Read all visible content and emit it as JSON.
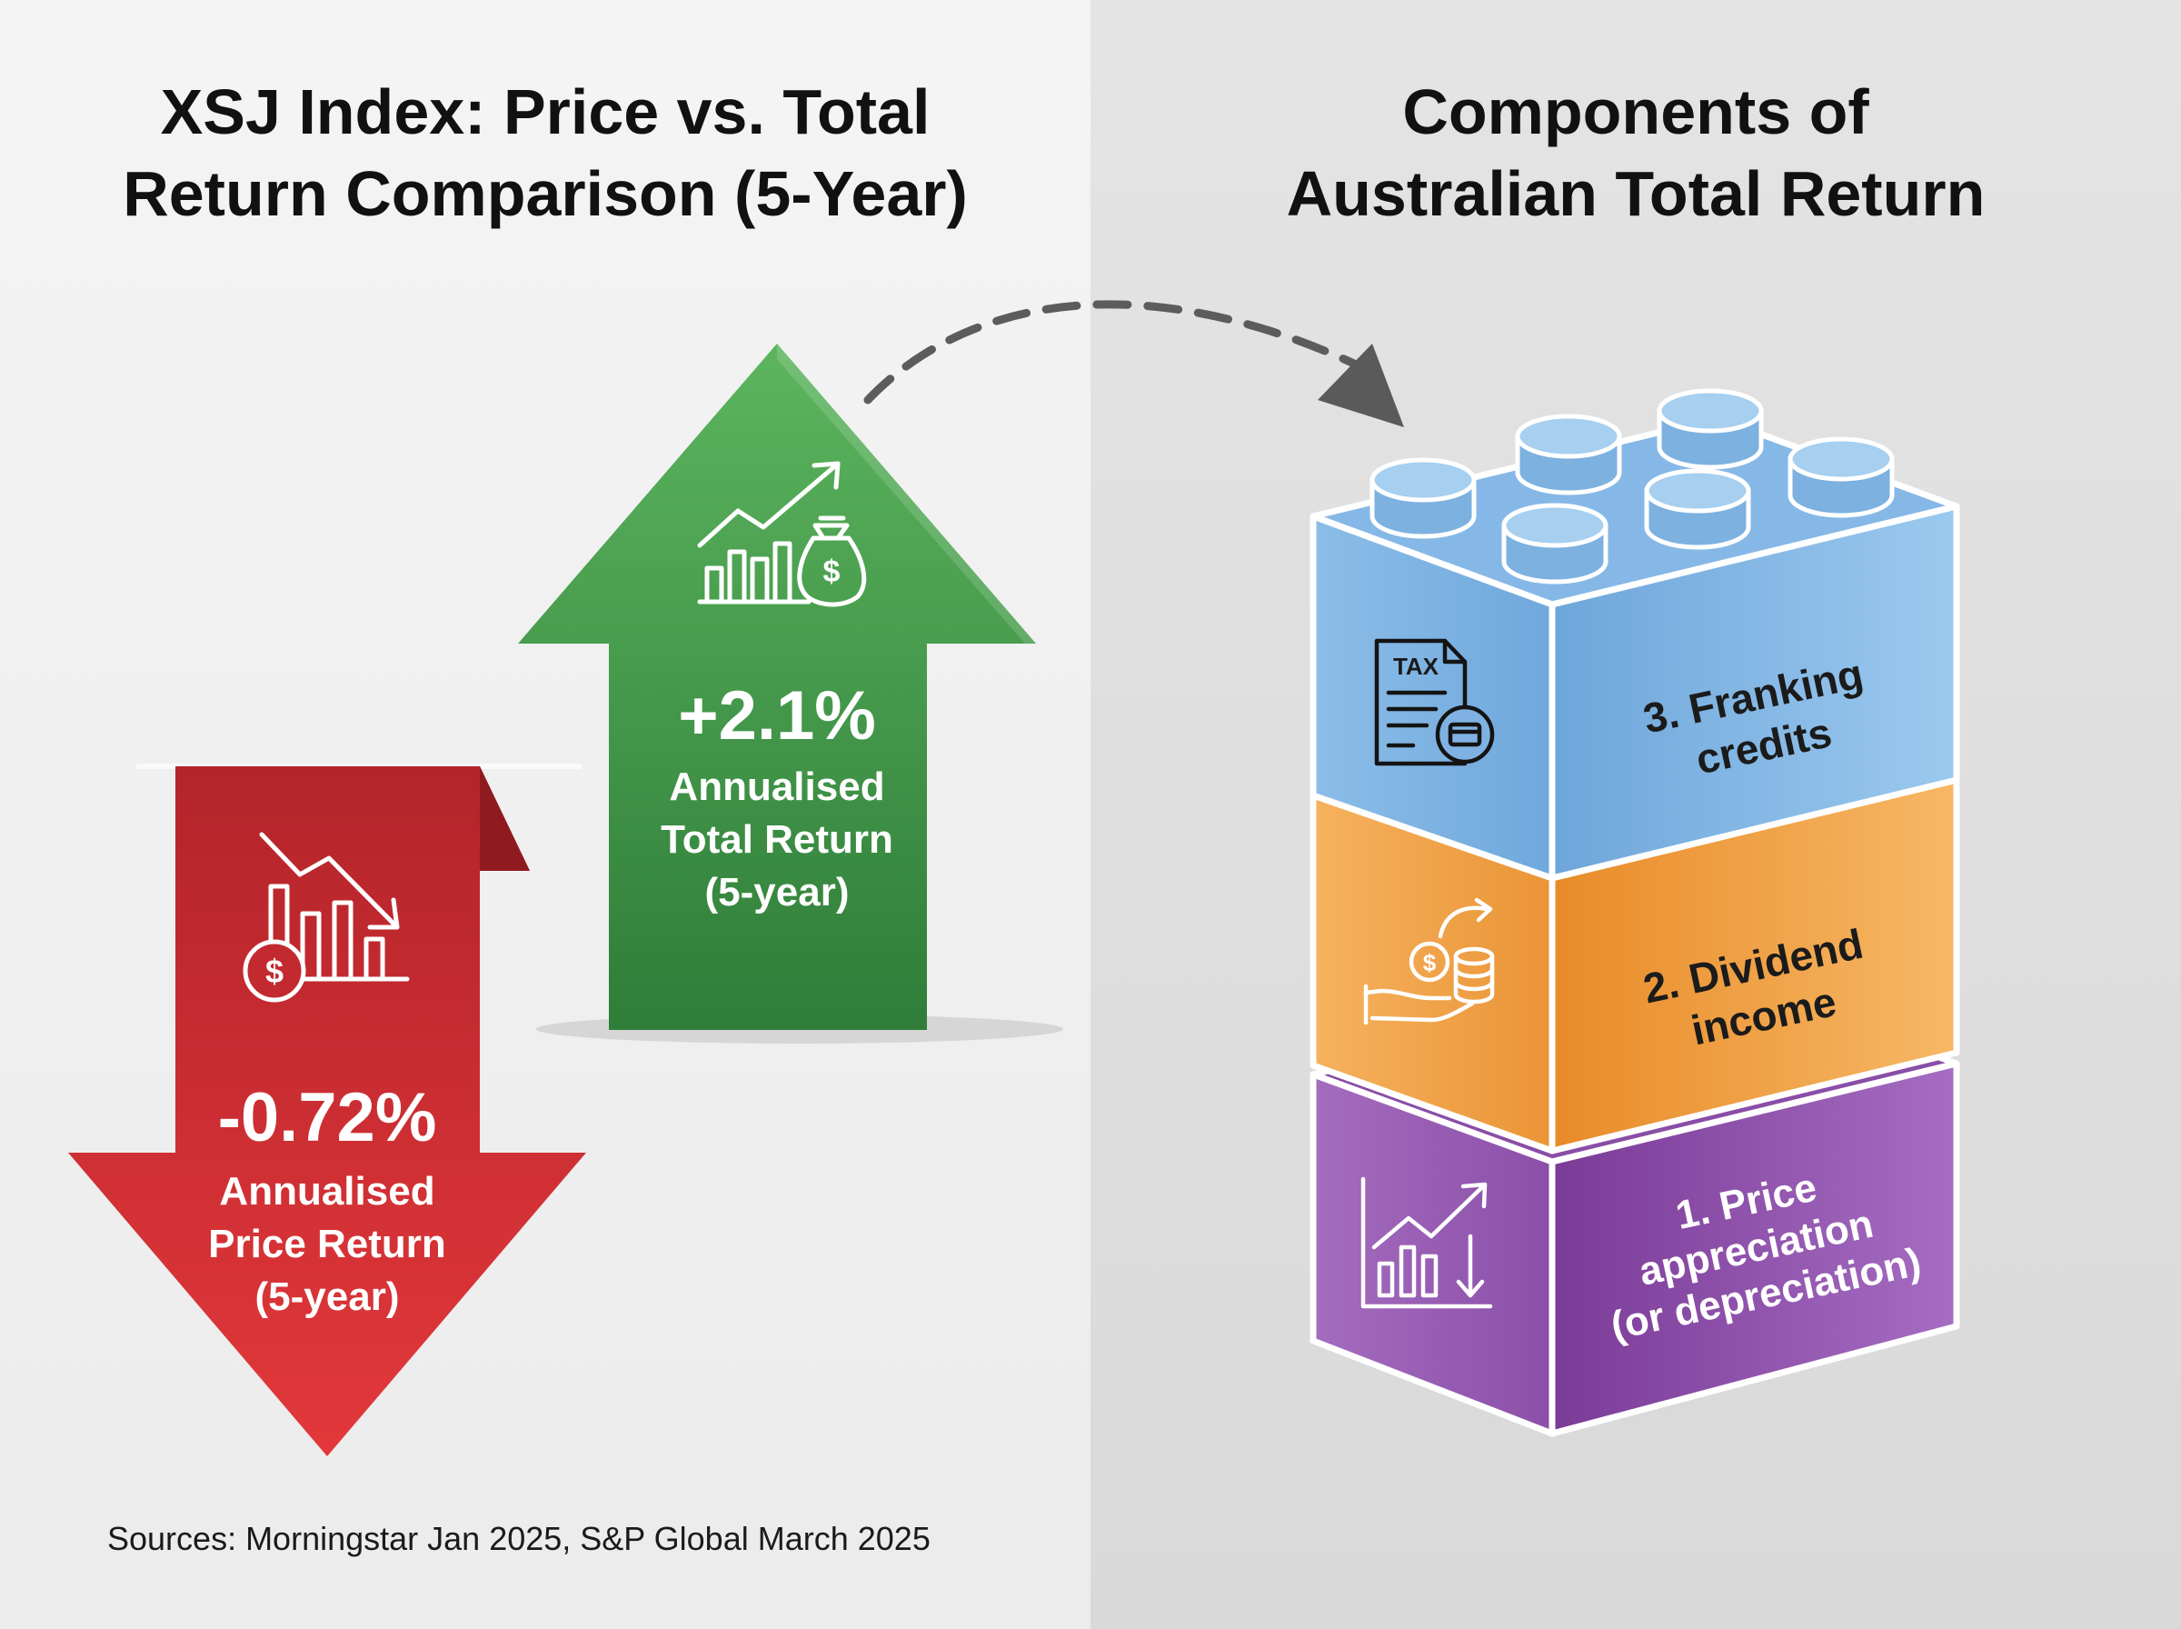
{
  "left_panel": {
    "title_lines": [
      "XSJ Index: Price vs. Total",
      "Return Comparison (5-Year)"
    ],
    "total_return": {
      "value_label": "+2.1%",
      "value": 2.1,
      "caption_lines": [
        "Annualised",
        "Total Return",
        "(5-year)"
      ],
      "icon": "growth-chart-money-bag-icon"
    },
    "price_return": {
      "value_label": "-0.72%",
      "value": -0.72,
      "caption_lines": [
        "Annualised",
        "Price Return",
        "(5-year)"
      ],
      "icon": "declining-chart-dollar-icon"
    },
    "source": "Sources: Morningstar Jan 2025, S&P Global March 2025"
  },
  "right_panel": {
    "title_lines": [
      "Components of",
      "Australian Total Return"
    ],
    "components": [
      {
        "label_lines": [
          "3. Franking",
          "credits"
        ],
        "icon": "tax-document-card-icon",
        "color": "#7fb4e3"
      },
      {
        "label_lines": [
          "2. Dividend",
          "income"
        ],
        "icon": "hand-coins-dividend-icon",
        "color": "#f0a04a"
      },
      {
        "label_lines": [
          "1. Price",
          "appreciation",
          "(or depreciation)"
        ],
        "icon": "price-chart-up-down-icon",
        "color": "#9457b0"
      }
    ]
  },
  "colors": {
    "green": "#3f9a45",
    "red": "#d63035",
    "blue": "#7fb4e3",
    "orange": "#f0a04a",
    "purple": "#9457b0"
  }
}
